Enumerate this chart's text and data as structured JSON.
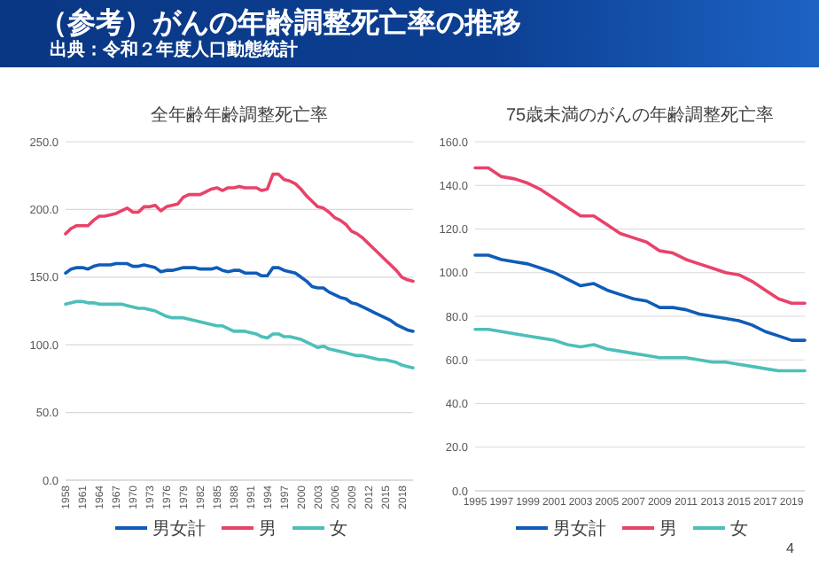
{
  "chart_data": [
    {
      "type": "other",
      "title": "（参考）がんの年齢調整死亡率の推移",
      "subtitle": "出典：令和２年度人口動態統計"
    },
    {
      "type": "line",
      "title": "全年齢年齢調整死亡率",
      "categories": [
        "1958",
        null,
        null,
        "1961",
        null,
        null,
        "1964",
        null,
        null,
        "1967",
        null,
        null,
        "1970",
        null,
        null,
        "1973",
        null,
        null,
        "1976",
        null,
        null,
        "1979",
        null,
        null,
        "1982",
        null,
        null,
        "1985",
        null,
        null,
        "1988",
        null,
        null,
        "1991",
        null,
        null,
        "1994",
        null,
        null,
        "1997",
        null,
        null,
        "2000",
        null,
        null,
        "2003",
        null,
        null,
        "2006",
        null,
        null,
        "2009",
        null,
        null,
        "2012",
        null,
        null,
        "2015",
        null,
        null,
        "2018",
        null,
        null
      ],
      "series": [
        {
          "name": "男女計",
          "color": "#0f5cb8",
          "values": [
            153,
            156,
            157,
            157,
            156,
            158,
            159,
            159,
            159,
            160,
            160,
            160,
            158,
            158,
            159,
            158,
            157,
            154,
            155,
            155,
            156,
            157,
            157,
            157,
            156,
            156,
            156,
            157,
            155,
            154,
            155,
            155,
            153,
            153,
            153,
            151,
            151,
            157,
            157,
            155,
            154,
            153,
            150,
            147,
            143,
            142,
            142,
            139,
            137,
            135,
            134,
            131,
            130,
            128,
            126,
            124,
            122,
            120,
            118,
            115,
            113,
            111,
            110
          ]
        },
        {
          "name": "男",
          "color": "#e8436a",
          "values": [
            182,
            186,
            188,
            188,
            188,
            192,
            195,
            195,
            196,
            197,
            199,
            201,
            198,
            198,
            202,
            202,
            203,
            199,
            202,
            203,
            204,
            209,
            211,
            211,
            211,
            213,
            215,
            216,
            214,
            216,
            216,
            217,
            216,
            216,
            216,
            214,
            215,
            226,
            226,
            222,
            221,
            219,
            215,
            210,
            206,
            202,
            201,
            198,
            194,
            192,
            189,
            184,
            182,
            179,
            175,
            171,
            167,
            163,
            159,
            155,
            150,
            148,
            147
          ]
        },
        {
          "name": "女",
          "color": "#4dbfb8",
          "values": [
            130,
            131,
            132,
            132,
            131,
            131,
            130,
            130,
            130,
            130,
            130,
            129,
            128,
            127,
            127,
            126,
            125,
            123,
            121,
            120,
            120,
            120,
            119,
            118,
            117,
            116,
            115,
            114,
            114,
            112,
            110,
            110,
            110,
            109,
            108,
            106,
            105,
            108,
            108,
            106,
            106,
            105,
            104,
            102,
            100,
            98,
            99,
            97,
            96,
            95,
            94,
            93,
            92,
            92,
            91,
            90,
            89,
            89,
            88,
            87,
            85,
            84,
            83
          ]
        }
      ],
      "ylim": [
        0,
        250
      ],
      "yticks": [
        {
          "value": 0,
          "label": "0.0"
        },
        {
          "value": 50,
          "label": "50.0"
        },
        {
          "value": 100,
          "label": "100.0"
        },
        {
          "value": 150,
          "label": "150.0"
        },
        {
          "value": 200,
          "label": "200.0"
        },
        {
          "value": 250,
          "label": "250.0"
        }
      ],
      "grid": "y",
      "legend": "bottom"
    },
    {
      "type": "line",
      "title": "75歳未満のがんの年齢調整死亡率",
      "categories": [
        "1995",
        null,
        "1997",
        null,
        "1999",
        null,
        "2001",
        null,
        "2003",
        null,
        "2005",
        null,
        "2007",
        null,
        "2009",
        null,
        "2011",
        null,
        "2013",
        null,
        "2015",
        null,
        "2017",
        null,
        "2019",
        null
      ],
      "series": [
        {
          "name": "男女計",
          "color": "#0f5cb8",
          "values": [
            108,
            108,
            106,
            105,
            104,
            102,
            100,
            97,
            94,
            95,
            92,
            90,
            88,
            87,
            84,
            84,
            83,
            81,
            80,
            79,
            78,
            76,
            73,
            71,
            69,
            69
          ]
        },
        {
          "name": "男",
          "color": "#e8436a",
          "values": [
            148,
            148,
            144,
            143,
            141,
            138,
            134,
            130,
            126,
            126,
            122,
            118,
            116,
            114,
            110,
            109,
            106,
            104,
            102,
            100,
            99,
            96,
            92,
            88,
            86,
            86
          ]
        },
        {
          "name": "女",
          "color": "#4dbfb8",
          "values": [
            74,
            74,
            73,
            72,
            71,
            70,
            69,
            67,
            66,
            67,
            65,
            64,
            63,
            62,
            61,
            61,
            61,
            60,
            59,
            59,
            58,
            57,
            56,
            55,
            55,
            55
          ]
        }
      ],
      "ylim": [
        0,
        160
      ],
      "yticks": [
        {
          "value": 0,
          "label": "0.0"
        },
        {
          "value": 20,
          "label": "20.0"
        },
        {
          "value": 40,
          "label": "40.0"
        },
        {
          "value": 60,
          "label": "60.0"
        },
        {
          "value": 80,
          "label": "80.0"
        },
        {
          "value": 100,
          "label": "100.0"
        },
        {
          "value": 120,
          "label": "120.0"
        },
        {
          "value": 140,
          "label": "140.0"
        },
        {
          "value": 160,
          "label": "160.0"
        }
      ],
      "grid": "y",
      "legend": "bottom",
      "annotations": [
        "4"
      ]
    }
  ]
}
